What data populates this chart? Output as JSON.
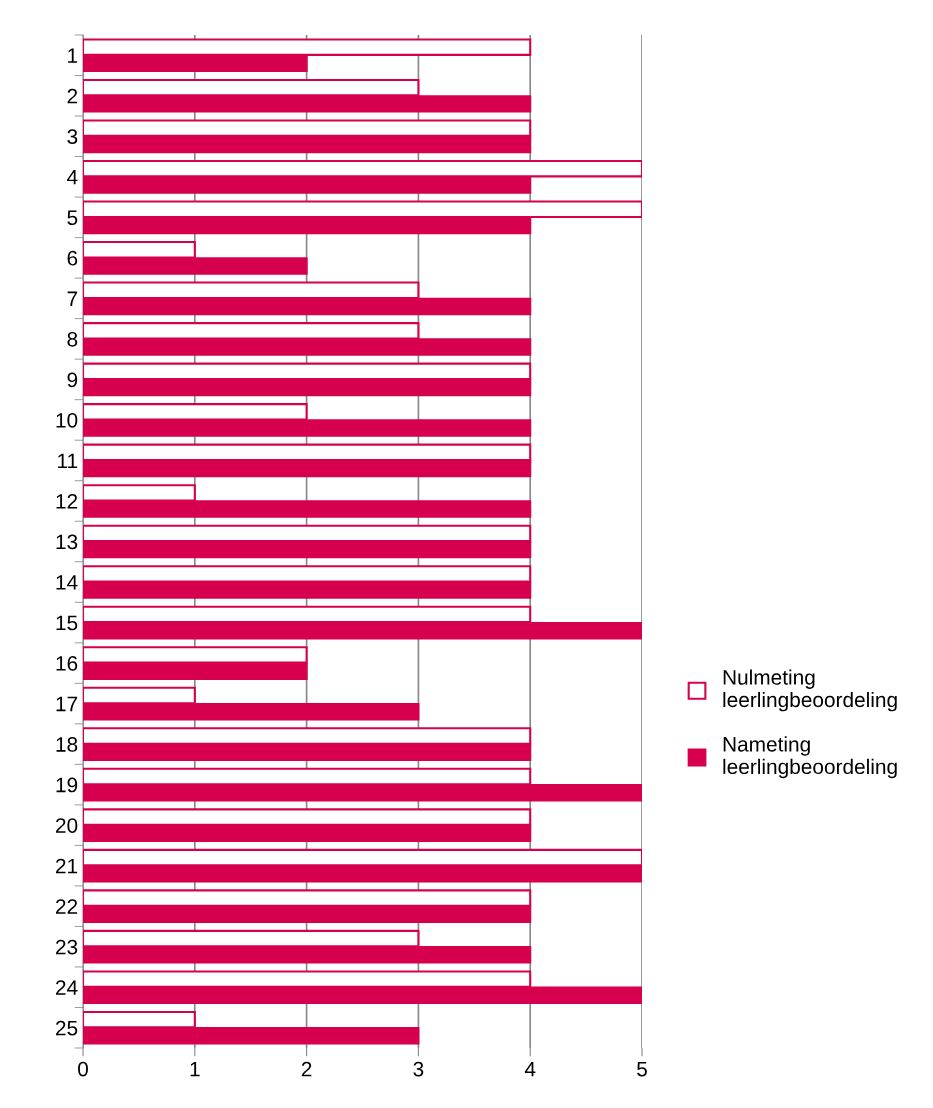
{
  "chart_data": {
    "type": "bar",
    "orientation": "horizontal",
    "categories": [
      "1",
      "2",
      "3",
      "4",
      "5",
      "6",
      "7",
      "8",
      "9",
      "10",
      "11",
      "12",
      "13",
      "14",
      "15",
      "16",
      "17",
      "18",
      "19",
      "20",
      "21",
      "22",
      "23",
      "24",
      "25"
    ],
    "series": [
      {
        "name": "Nulmeting leerlingbeoordeling",
        "color": "#d6004f",
        "values": [
          4,
          3,
          4,
          5,
          5,
          1,
          3,
          3,
          4,
          2,
          4,
          1,
          4,
          4,
          4,
          2,
          1,
          4,
          4,
          4,
          5,
          4,
          3,
          4,
          1
        ]
      },
      {
        "name": "Nameting leerlingbeoordeling",
        "color": "#d6004f",
        "values": [
          2,
          4,
          4,
          4,
          4,
          2,
          4,
          4,
          4,
          4,
          4,
          4,
          4,
          4,
          5,
          2,
          3,
          4,
          5,
          4,
          5,
          4,
          4,
          5,
          3
        ]
      }
    ],
    "xlim": [
      0,
      5
    ],
    "xticks": [
      0,
      1,
      2,
      3,
      4,
      5
    ],
    "grid": "x",
    "legend": "right"
  }
}
